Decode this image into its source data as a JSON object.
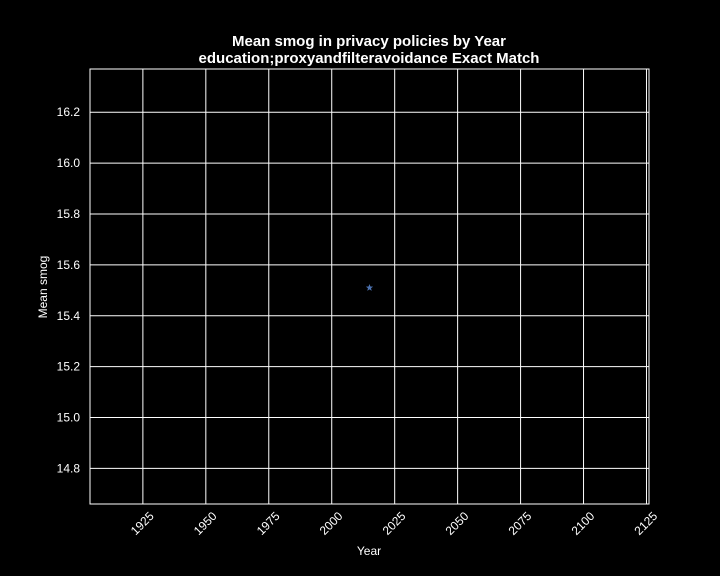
{
  "chart_data": {
    "type": "scatter",
    "title": "Mean smog in privacy policies by Year",
    "subtitle": "education;proxyandfilteravoidance Exact Match",
    "xlabel": "Year",
    "ylabel": "Mean smog",
    "xlim": [
      1904,
      2126
    ],
    "ylim": [
      14.66,
      16.37
    ],
    "xticks": [
      1925,
      1950,
      1975,
      2000,
      2025,
      2050,
      2075,
      2100,
      2125
    ],
    "yticks": [
      14.8,
      15.0,
      15.2,
      15.4,
      15.6,
      15.8,
      16.0,
      16.2
    ],
    "ytick_labels": [
      "14.8",
      "15.0",
      "15.2",
      "15.4",
      "15.6",
      "15.8",
      "16.0",
      "16.2"
    ],
    "grid": true,
    "marker": "star",
    "marker_color": "#4c72b0",
    "background": "#000000",
    "foreground": "#ffffff",
    "x": [
      2015
    ],
    "y": [
      15.51
    ]
  }
}
